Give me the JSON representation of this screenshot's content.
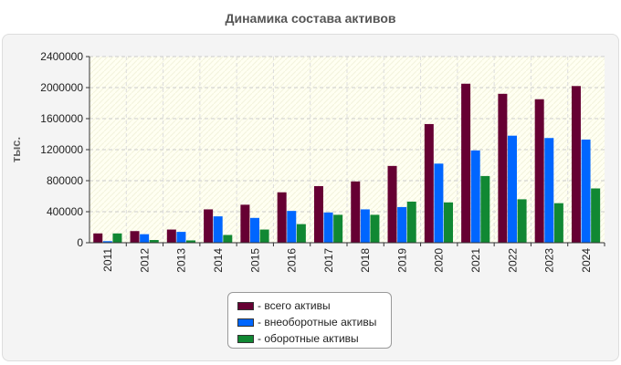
{
  "chart_data": {
    "type": "bar",
    "title": "Динамика состава активов",
    "xlabel": "",
    "ylabel": "тыс.",
    "categories": [
      "2011",
      "2012",
      "2013",
      "2014",
      "2015",
      "2016",
      "2017",
      "2018",
      "2019",
      "2020",
      "2021",
      "2022",
      "2023",
      "2024"
    ],
    "series": [
      {
        "name": "всего активы",
        "color": "#660033",
        "values": [
          120000,
          150000,
          170000,
          430000,
          490000,
          650000,
          730000,
          790000,
          990000,
          1530000,
          2050000,
          1920000,
          1850000,
          2020000
        ]
      },
      {
        "name": "внеоборотные активы",
        "color": "#0066ff",
        "values": [
          20000,
          110000,
          140000,
          340000,
          320000,
          410000,
          390000,
          430000,
          460000,
          1020000,
          1190000,
          1380000,
          1350000,
          1330000
        ]
      },
      {
        "name": "оборотные активы",
        "color": "#118833",
        "values": [
          120000,
          35000,
          30000,
          100000,
          170000,
          240000,
          360000,
          360000,
          530000,
          520000,
          860000,
          560000,
          510000,
          700000
        ]
      }
    ],
    "ylim": [
      0,
      2400000
    ],
    "yticks": [
      0,
      400000,
      800000,
      1200000,
      1600000,
      2000000,
      2400000
    ],
    "grid": true,
    "legend_position": "bottom"
  },
  "legend_prefix": "- "
}
